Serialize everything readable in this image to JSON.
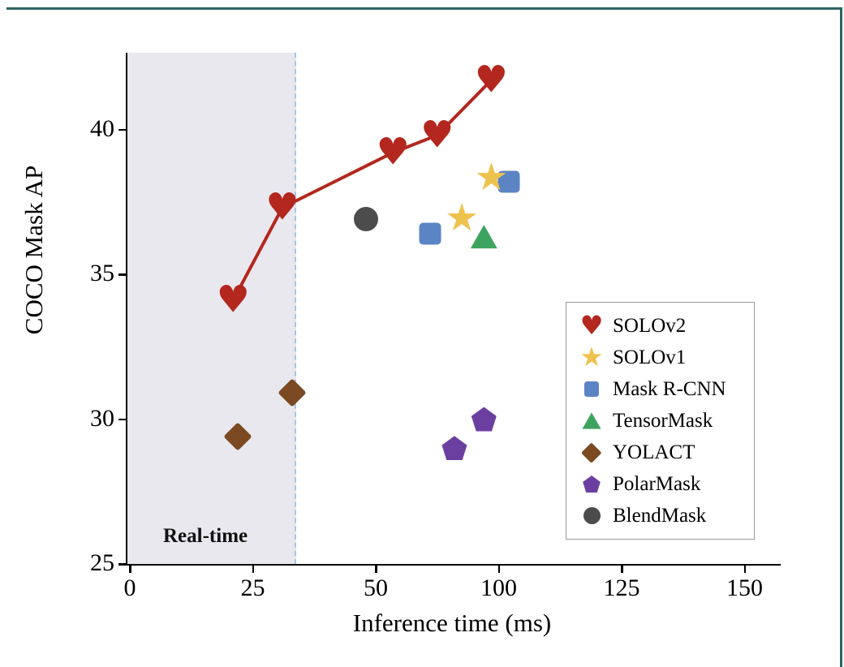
{
  "figure": {
    "title": "",
    "xlabel": "Inference time (ms)",
    "ylabel": "COCO Mask AP",
    "realtime_label": "Real-time"
  },
  "chart_data": {
    "type": "scatter",
    "title": "",
    "xlabel": "Inference time (ms)",
    "ylabel": "COCO Mask AP",
    "x_ticks": [
      0,
      25,
      50,
      100,
      125,
      150
    ],
    "y_ticks": [
      25,
      30,
      35,
      40
    ],
    "ylim": [
      25,
      42.6
    ],
    "grid": false,
    "legend_position": "lower right",
    "realtime_region": {
      "label": "Real-time",
      "x_end": 33.5,
      "fill_color": "#e9e8ee",
      "line_color": "#a9c3e6",
      "line_style": "dashed"
    },
    "series": [
      {
        "name": "SOLOv2",
        "marker": "heart",
        "color": "#b3271e",
        "line": true,
        "points": [
          [
            21,
            34.1
          ],
          [
            31,
            37.3
          ],
          [
            57,
            39.2
          ],
          [
            75,
            39.8
          ],
          [
            97,
            41.7
          ]
        ]
      },
      {
        "name": "SOLOv1",
        "marker": "star",
        "color": "#eec24e",
        "line": false,
        "points": [
          [
            85,
            36.9
          ],
          [
            97,
            38.3
          ]
        ]
      },
      {
        "name": "Mask R-CNN",
        "marker": "square",
        "color": "#5b84c4",
        "line": false,
        "points": [
          [
            72,
            36.4
          ],
          [
            102,
            38.2
          ]
        ]
      },
      {
        "name": "TensorMask",
        "marker": "triangle",
        "color": "#3da45f",
        "line": false,
        "points": [
          [
            94,
            36.3
          ]
        ]
      },
      {
        "name": "YOLACT",
        "marker": "diamond",
        "color": "#7b4a22",
        "line": false,
        "points": [
          [
            22,
            29.4
          ],
          [
            33,
            30.9
          ]
        ]
      },
      {
        "name": "PolarMask",
        "marker": "pentagon",
        "color": "#6b3fa0",
        "line": false,
        "points": [
          [
            82,
            29.0
          ],
          [
            94,
            30.0
          ]
        ]
      },
      {
        "name": "BlendMask",
        "marker": "circle",
        "color": "#4c4c4c",
        "line": false,
        "points": [
          [
            48,
            36.9
          ]
        ]
      }
    ]
  }
}
